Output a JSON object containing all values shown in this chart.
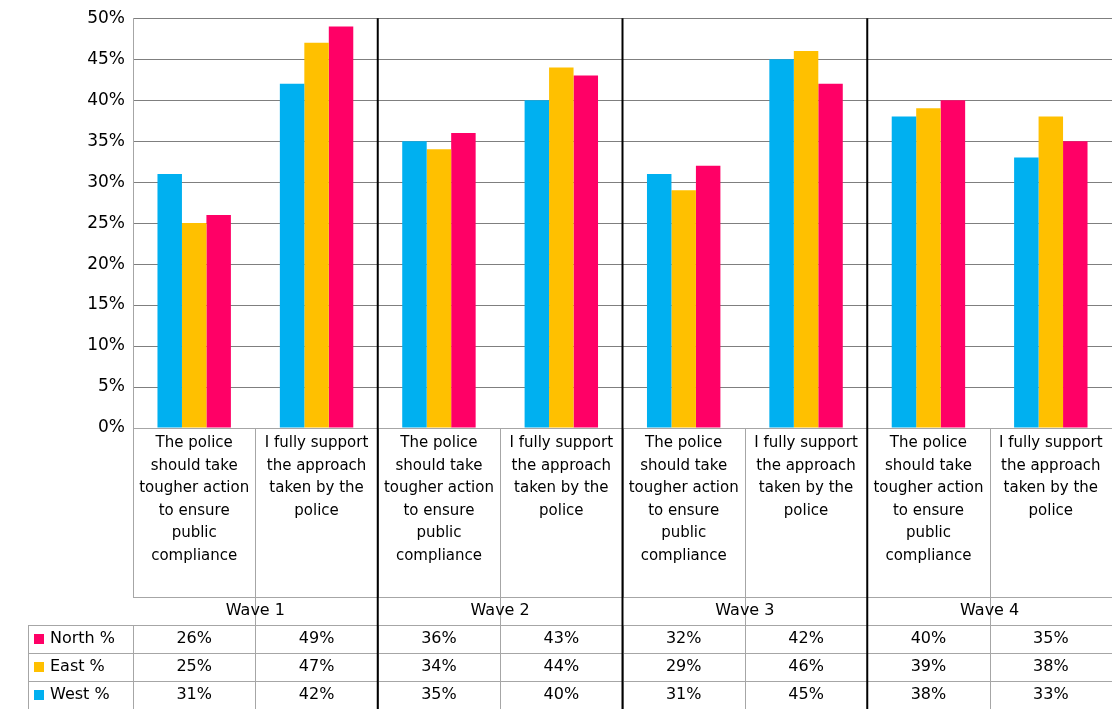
{
  "chart_data": {
    "type": "bar",
    "categories": [
      "The police should take tougher action to ensure public compliance",
      "I fully support the approach taken by the police",
      "The police should take tougher action to ensure public compliance",
      "I fully support the approach taken by the police",
      "The police should take tougher action to ensure public compliance",
      "I fully support the approach taken by the police",
      "The police should take tougher action to ensure public compliance",
      "I fully support the approach taken by the police"
    ],
    "annotations": [
      "Wave 1",
      "Wave 2",
      "Wave 3",
      "Wave 4"
    ],
    "series": [
      {
        "name": "West %",
        "color": "#00b0f0",
        "values": [
          31,
          42,
          35,
          40,
          31,
          45,
          38,
          33
        ],
        "value_labels": [
          "31%",
          "42%",
          "35%",
          "40%",
          "31%",
          "45%",
          "38%",
          "33%"
        ]
      },
      {
        "name": "East %",
        "color": "#ffc000",
        "values": [
          25,
          47,
          34,
          44,
          29,
          46,
          39,
          38
        ],
        "value_labels": [
          "25%",
          "47%",
          "34%",
          "44%",
          "29%",
          "46%",
          "39%",
          "38%"
        ]
      },
      {
        "name": "North %",
        "color": "#ff0066",
        "values": [
          26,
          49,
          36,
          43,
          32,
          42,
          40,
          35
        ],
        "value_labels": [
          "26%",
          "49%",
          "36%",
          "43%",
          "32%",
          "42%",
          "40%",
          "35%"
        ]
      }
    ],
    "ylim": [
      0,
      50
    ],
    "yticks": [
      {
        "value": 0,
        "label": "0%"
      },
      {
        "value": 5,
        "label": "5%"
      },
      {
        "value": 10,
        "label": "10%"
      },
      {
        "value": 15,
        "label": "15%"
      },
      {
        "value": 20,
        "label": "20%"
      },
      {
        "value": 25,
        "label": "25%"
      },
      {
        "value": 30,
        "label": "30%"
      },
      {
        "value": 35,
        "label": "35%"
      },
      {
        "value": 40,
        "label": "40%"
      },
      {
        "value": 45,
        "label": "45%"
      },
      {
        "value": 50,
        "label": "50%"
      }
    ],
    "grid": "y",
    "legend": "bottom left"
  }
}
